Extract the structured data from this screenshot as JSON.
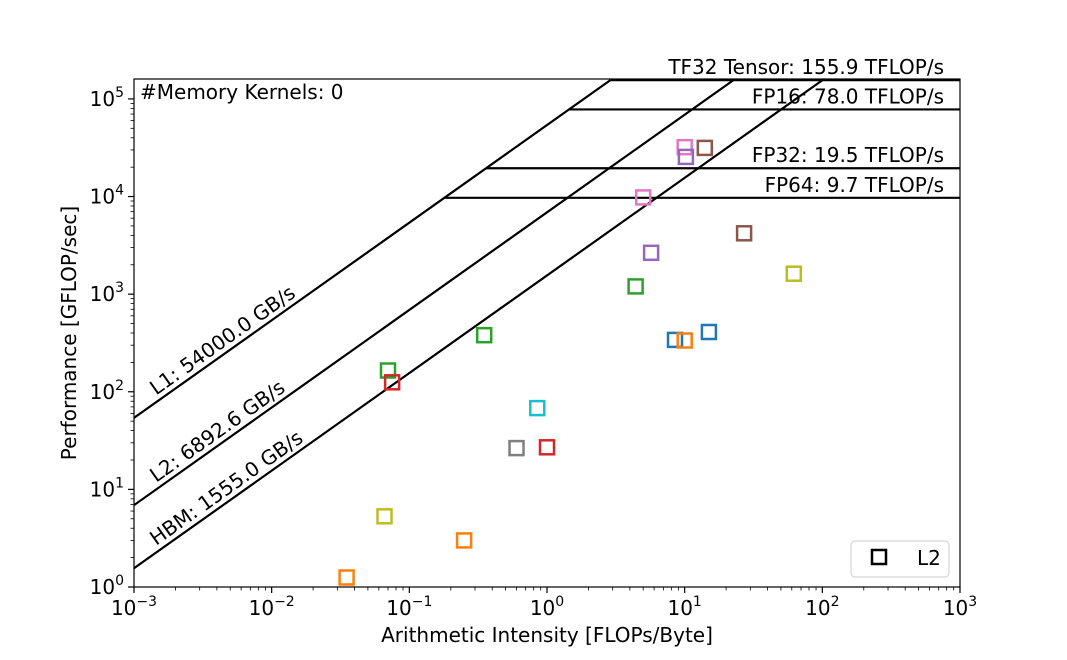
{
  "chart_data": {
    "type": "scatter",
    "xlabel": "Arithmetic Intensity [FLOPs/Byte]",
    "ylabel": "Performance [GFLOP/sec]",
    "xscale": "log",
    "yscale": "log",
    "xlim": [
      0.001,
      1000
    ],
    "ylim": [
      1,
      160000
    ],
    "x_ticks": [
      {
        "base": "10",
        "exp": "−3",
        "value": 0.001
      },
      {
        "base": "10",
        "exp": "−2",
        "value": 0.01
      },
      {
        "base": "10",
        "exp": "−1",
        "value": 0.1
      },
      {
        "base": "10",
        "exp": "0",
        "value": 1
      },
      {
        "base": "10",
        "exp": "1",
        "value": 10
      },
      {
        "base": "10",
        "exp": "2",
        "value": 100
      },
      {
        "base": "10",
        "exp": "3",
        "value": 1000
      }
    ],
    "y_ticks": [
      {
        "base": "10",
        "exp": "0",
        "value": 1
      },
      {
        "base": "10",
        "exp": "1",
        "value": 10
      },
      {
        "base": "10",
        "exp": "2",
        "value": 100
      },
      {
        "base": "10",
        "exp": "3",
        "value": 1000
      },
      {
        "base": "10",
        "exp": "4",
        "value": 10000
      },
      {
        "base": "10",
        "exp": "5",
        "value": 100000
      }
    ],
    "annotation": "#Memory Kernels: 0",
    "bandwidth_roofs": [
      {
        "label": "L1: 54000.0 GB/s",
        "bandwidth": 54000.0
      },
      {
        "label": "L2: 6892.6 GB/s",
        "bandwidth": 6892.6
      },
      {
        "label": "HBM: 1555.0 GB/s",
        "bandwidth": 1555.0
      }
    ],
    "compute_roofs": [
      {
        "label": "TF32 Tensor: 155.9 TFLOP/s",
        "peak": 155900
      },
      {
        "label": "FP16: 78.0 TFLOP/s",
        "peak": 78000
      },
      {
        "label": "FP32: 19.5 TFLOP/s",
        "peak": 19500
      },
      {
        "label": "FP64: 9.7 TFLOP/s",
        "peak": 9700
      }
    ],
    "legend": {
      "entries": [
        "L2"
      ],
      "position": "lower-right"
    },
    "series": [
      {
        "color": "#1f77b4",
        "points": [
          {
            "x": 8.5,
            "y": 340
          },
          {
            "x": 15,
            "y": 410
          }
        ]
      },
      {
        "color": "#ff7f0e",
        "points": [
          {
            "x": 0.035,
            "y": 1.25
          },
          {
            "x": 0.25,
            "y": 3.0
          },
          {
            "x": 10,
            "y": 335
          }
        ]
      },
      {
        "color": "#2ca02c",
        "points": [
          {
            "x": 0.07,
            "y": 165
          },
          {
            "x": 0.35,
            "y": 380
          },
          {
            "x": 4.4,
            "y": 1200
          }
        ]
      },
      {
        "color": "#d62728",
        "points": [
          {
            "x": 0.075,
            "y": 125
          },
          {
            "x": 1.0,
            "y": 27
          }
        ]
      },
      {
        "color": "#9467bd",
        "points": [
          {
            "x": 5.7,
            "y": 2650
          }
        ]
      },
      {
        "color": "#8c564b",
        "points": [
          {
            "x": 14,
            "y": 31500
          },
          {
            "x": 27,
            "y": 4200
          }
        ]
      },
      {
        "color": "#e377c2",
        "points": [
          {
            "x": 10,
            "y": 32000
          },
          {
            "x": 5,
            "y": 9800
          }
        ]
      },
      {
        "color": "#7f7f7f",
        "points": [
          {
            "x": 0.6,
            "y": 26.5
          }
        ]
      },
      {
        "color": "#bcbd22",
        "points": [
          {
            "x": 0.066,
            "y": 5.3
          },
          {
            "x": 62,
            "y": 1620
          }
        ]
      },
      {
        "color": "#17becf",
        "points": [
          {
            "x": 0.85,
            "y": 68
          }
        ]
      },
      {
        "color": "#9467bd",
        "points": [
          {
            "x": 10.2,
            "y": 25500
          }
        ]
      }
    ]
  }
}
